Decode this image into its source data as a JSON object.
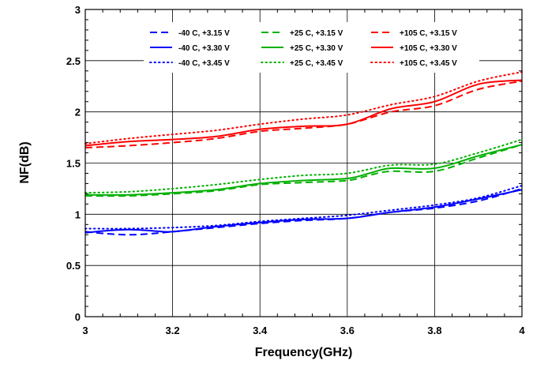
{
  "chart_data": {
    "type": "line",
    "title": "",
    "xlabel": "Frequency(GHz)",
    "ylabel": "NF(dB)",
    "xlim": [
      3,
      4
    ],
    "ylim": [
      0,
      3
    ],
    "xticks": [
      3,
      3.2,
      3.4,
      3.6,
      3.8,
      4
    ],
    "xtick_labels": [
      "3",
      "3.2",
      "3.4",
      "3.6",
      "3.8",
      "4"
    ],
    "yticks": [
      0,
      0.5,
      1,
      1.5,
      2,
      2.5,
      3
    ],
    "ytick_labels": [
      "0",
      "0.5",
      "1",
      "1.5",
      "2",
      "2.5",
      "3"
    ],
    "grid": true,
    "legend_position": "top",
    "series": [
      {
        "name": "-40 C, +3.15 V",
        "color": "#0000ff",
        "dash": "dashed",
        "x": [
          3.0,
          3.05,
          3.1,
          3.15,
          3.2,
          3.3,
          3.4,
          3.5,
          3.6,
          3.7,
          3.8,
          3.9,
          4.0
        ],
        "y": [
          0.83,
          0.81,
          0.8,
          0.81,
          0.83,
          0.87,
          0.91,
          0.94,
          0.96,
          1.02,
          1.06,
          1.13,
          1.25
        ]
      },
      {
        "name": "-40 C, +3.30 V",
        "color": "#0000ff",
        "dash": "solid",
        "x": [
          3.0,
          3.05,
          3.1,
          3.15,
          3.2,
          3.3,
          3.4,
          3.5,
          3.6,
          3.7,
          3.8,
          3.9,
          4.0
        ],
        "y": [
          0.82,
          0.84,
          0.85,
          0.84,
          0.83,
          0.88,
          0.92,
          0.95,
          0.96,
          1.02,
          1.07,
          1.15,
          1.24
        ]
      },
      {
        "name": "-40 C, +3.45 V",
        "color": "#0000ff",
        "dash": "dotted",
        "x": [
          3.0,
          3.1,
          3.2,
          3.3,
          3.4,
          3.5,
          3.6,
          3.7,
          3.8,
          3.9,
          4.0
        ],
        "y": [
          0.86,
          0.86,
          0.87,
          0.89,
          0.93,
          0.96,
          0.99,
          1.04,
          1.09,
          1.16,
          1.28
        ]
      },
      {
        "name": "+25 C, +3.15 V",
        "color": "#00b000",
        "dash": "dashed",
        "x": [
          3.0,
          3.1,
          3.2,
          3.3,
          3.4,
          3.5,
          3.6,
          3.65,
          3.7,
          3.8,
          3.9,
          4.0
        ],
        "y": [
          1.18,
          1.18,
          1.2,
          1.23,
          1.29,
          1.31,
          1.33,
          1.38,
          1.42,
          1.42,
          1.55,
          1.68
        ]
      },
      {
        "name": "+25 C, +3.30 V",
        "color": "#00b000",
        "dash": "solid",
        "x": [
          3.0,
          3.1,
          3.2,
          3.3,
          3.4,
          3.5,
          3.6,
          3.65,
          3.7,
          3.8,
          3.9,
          4.0
        ],
        "y": [
          1.19,
          1.19,
          1.21,
          1.24,
          1.3,
          1.33,
          1.35,
          1.4,
          1.45,
          1.45,
          1.57,
          1.68
        ]
      },
      {
        "name": "+25 C, +3.45 V",
        "color": "#00b000",
        "dash": "dotted",
        "x": [
          3.0,
          3.1,
          3.2,
          3.3,
          3.4,
          3.5,
          3.6,
          3.7,
          3.8,
          3.9,
          4.0
        ],
        "y": [
          1.21,
          1.22,
          1.25,
          1.29,
          1.34,
          1.38,
          1.4,
          1.48,
          1.49,
          1.6,
          1.73
        ]
      },
      {
        "name": "+105 C, +3.15 V",
        "color": "#ff0000",
        "dash": "dashed",
        "x": [
          3.0,
          3.1,
          3.2,
          3.3,
          3.4,
          3.5,
          3.6,
          3.7,
          3.8,
          3.9,
          4.0
        ],
        "y": [
          1.65,
          1.67,
          1.7,
          1.74,
          1.81,
          1.84,
          1.88,
          2.0,
          2.06,
          2.22,
          2.3
        ]
      },
      {
        "name": "+105 C, +3.30 V",
        "color": "#ff0000",
        "dash": "solid",
        "x": [
          3.0,
          3.1,
          3.2,
          3.3,
          3.4,
          3.5,
          3.6,
          3.7,
          3.8,
          3.9,
          4.0
        ],
        "y": [
          1.67,
          1.71,
          1.73,
          1.76,
          1.83,
          1.86,
          1.88,
          2.03,
          2.1,
          2.27,
          2.31
        ]
      },
      {
        "name": "+105 C, +3.45 V",
        "color": "#ff0000",
        "dash": "dotted",
        "x": [
          3.0,
          3.1,
          3.2,
          3.3,
          3.4,
          3.5,
          3.6,
          3.7,
          3.8,
          3.9,
          4.0
        ],
        "y": [
          1.69,
          1.74,
          1.78,
          1.82,
          1.88,
          1.93,
          1.97,
          2.07,
          2.15,
          2.3,
          2.39
        ]
      }
    ]
  }
}
